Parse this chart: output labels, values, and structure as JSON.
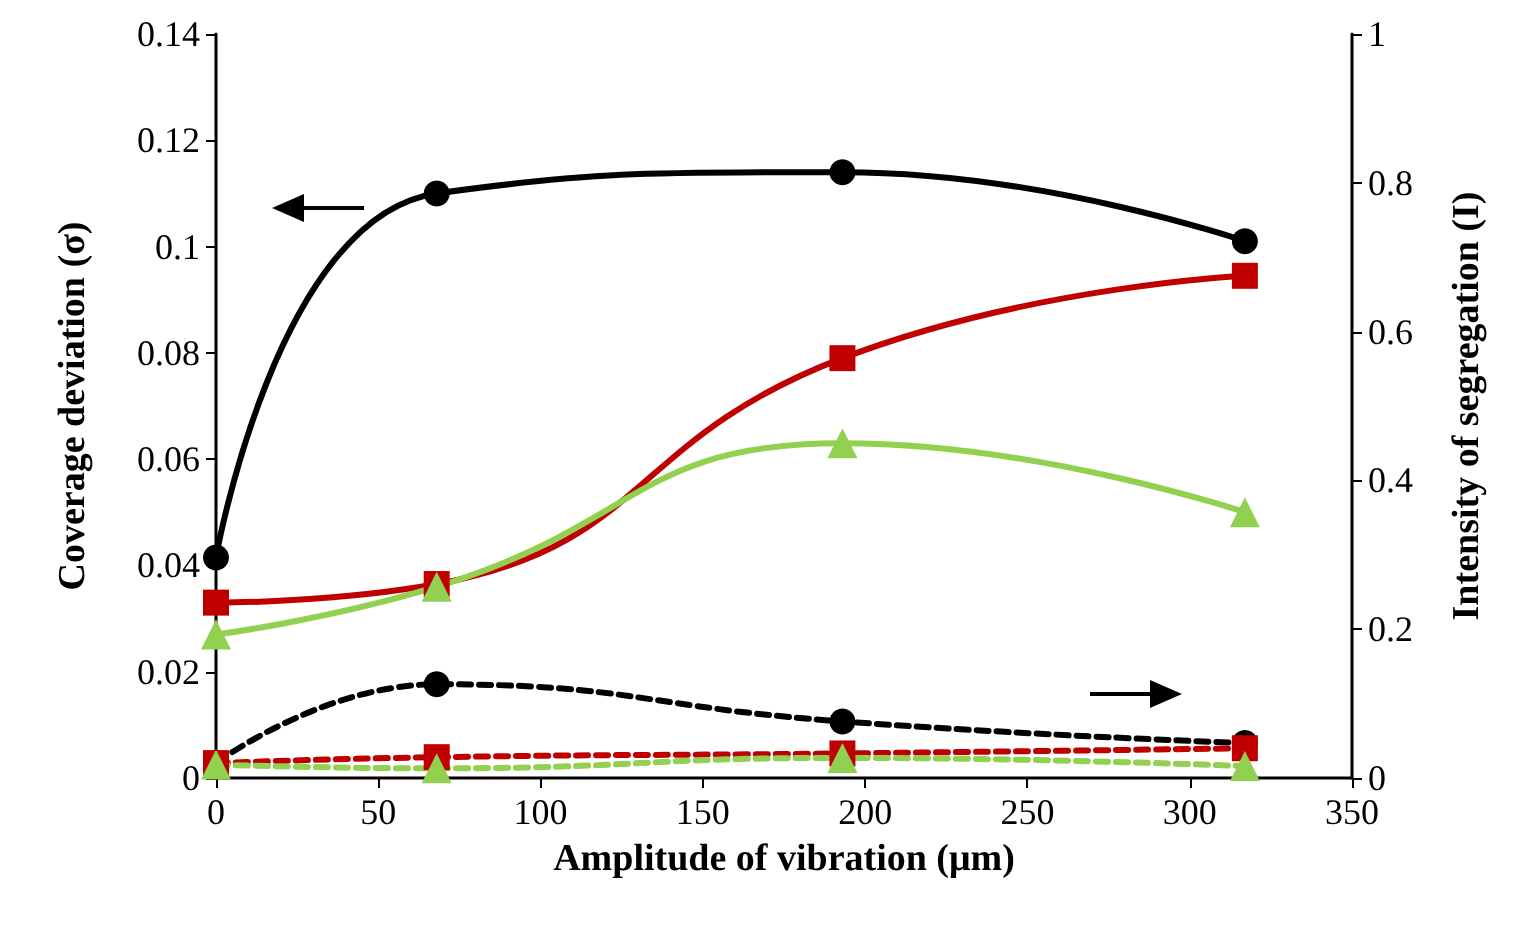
{
  "chart_data": {
    "type": "line",
    "xlabel": "Amplitude of vibration (μm)",
    "ylabel": "Coverage deviation (σ)",
    "y2label": "Intensity of segregation (I)",
    "x": [
      0,
      68,
      193,
      317
    ],
    "xlim": [
      0,
      350
    ],
    "xticks": [
      0,
      50,
      100,
      150,
      200,
      250,
      300,
      350
    ],
    "ylim": [
      0,
      0.14
    ],
    "yticks": [
      0,
      0.02,
      0.04,
      0.06,
      0.08,
      0.1,
      0.12,
      0.14
    ],
    "y2lim": [
      0,
      1
    ],
    "y2ticks": [
      0,
      0.2,
      0.4,
      0.6,
      0.8,
      1
    ],
    "grid": false,
    "series": [
      {
        "color": "#000000",
        "marker": "circle",
        "line_style": "solid",
        "values": [
          0.0415,
          0.11,
          0.114,
          0.101
        ]
      },
      {
        "color": "#c00000",
        "marker": "square",
        "line_style": "solid",
        "values": [
          0.033,
          0.0365,
          0.079,
          0.0945
        ]
      },
      {
        "color": "#92d050",
        "marker": "triangle",
        "line_style": "solid",
        "values": [
          0.027,
          0.036,
          0.063,
          0.05
        ]
      },
      {
        "color": "#000000",
        "marker": "circle",
        "line_style": "dashed",
        "axis": "y2",
        "values": [
          0.02,
          0.126,
          0.076,
          0.047
        ]
      },
      {
        "color": "#c00000",
        "marker": "square",
        "line_style": "dashed",
        "axis": "y2",
        "values": [
          0.02,
          0.028,
          0.033,
          0.04
        ]
      },
      {
        "color": "#92d050",
        "marker": "triangle",
        "line_style": "dashed",
        "axis": "y2",
        "values": [
          0.018,
          0.013,
          0.027,
          0.016
        ]
      }
    ]
  }
}
